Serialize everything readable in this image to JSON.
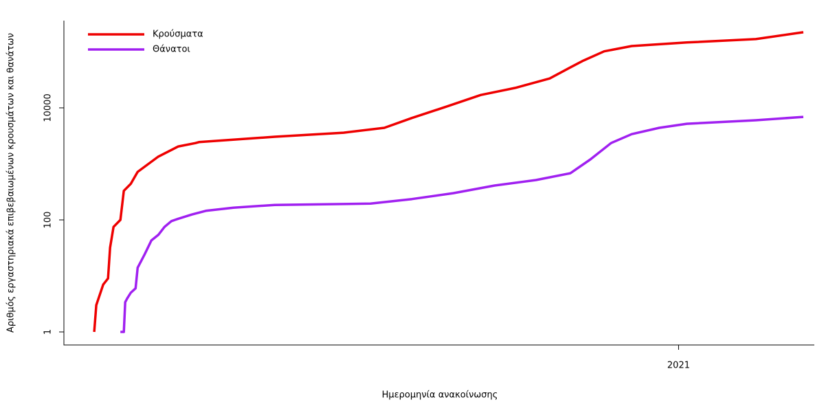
{
  "chart_data": {
    "type": "line",
    "xlabel": "Ημερομηνία ανακοίνωσης",
    "ylabel": "Αριθμός εργαστηριακά επιβεβαιωμένων κρουσμάτων και θανάτων",
    "ylog": true,
    "xlim": [
      2020.108,
      2021.197
    ],
    "ylim": [
      0.585,
      361000
    ],
    "xticks": [
      2021
    ],
    "yticks": [
      1,
      100,
      10000
    ],
    "legend": "upper left",
    "series": [
      {
        "name": "Κρούσματα",
        "color": "#ee0000",
        "x": [
          2020.152,
          2020.155,
          2020.165,
          2020.172,
          2020.175,
          2020.18,
          2020.19,
          2020.195,
          2020.205,
          2020.215,
          2020.245,
          2020.274,
          2020.299,
          2020.304,
          2020.414,
          2020.514,
          2020.573,
          2020.613,
          2020.663,
          2020.713,
          2020.763,
          2020.813,
          2020.843,
          2020.862,
          2020.892,
          2020.932,
          2021.012,
          2021.112,
          2021.181
        ],
        "values": [
          1,
          3,
          7,
          9,
          32,
          75,
          100,
          330,
          440,
          720,
          1350,
          2050,
          2350,
          2450,
          3050,
          3600,
          4400,
          6600,
          10500,
          17000,
          22700,
          33500,
          52800,
          70000,
          102000,
          127000,
          147000,
          169000,
          224000
        ]
      },
      {
        "name": "Θάνατοι",
        "color": "#a020f0",
        "x": [
          2020.19,
          2020.195,
          2020.197,
          2020.2,
          2020.205,
          2020.212,
          2020.215,
          2020.225,
          2020.235,
          2020.245,
          2020.254,
          2020.264,
          2020.274,
          2020.294,
          2020.314,
          2020.354,
          2020.414,
          2020.553,
          2020.613,
          2020.673,
          2020.733,
          2020.793,
          2020.843,
          2020.872,
          2020.902,
          2020.932,
          2020.972,
          2021.012,
          2021.112,
          2021.181
        ],
        "values": [
          1,
          1,
          3.4,
          4,
          5,
          6,
          14,
          24,
          43,
          54,
          75,
          95,
          105,
          125,
          145,
          165,
          185,
          195,
          235,
          300,
          410,
          515,
          680,
          1200,
          2350,
          3400,
          4400,
          5200,
          6000,
          6900
        ]
      }
    ]
  }
}
